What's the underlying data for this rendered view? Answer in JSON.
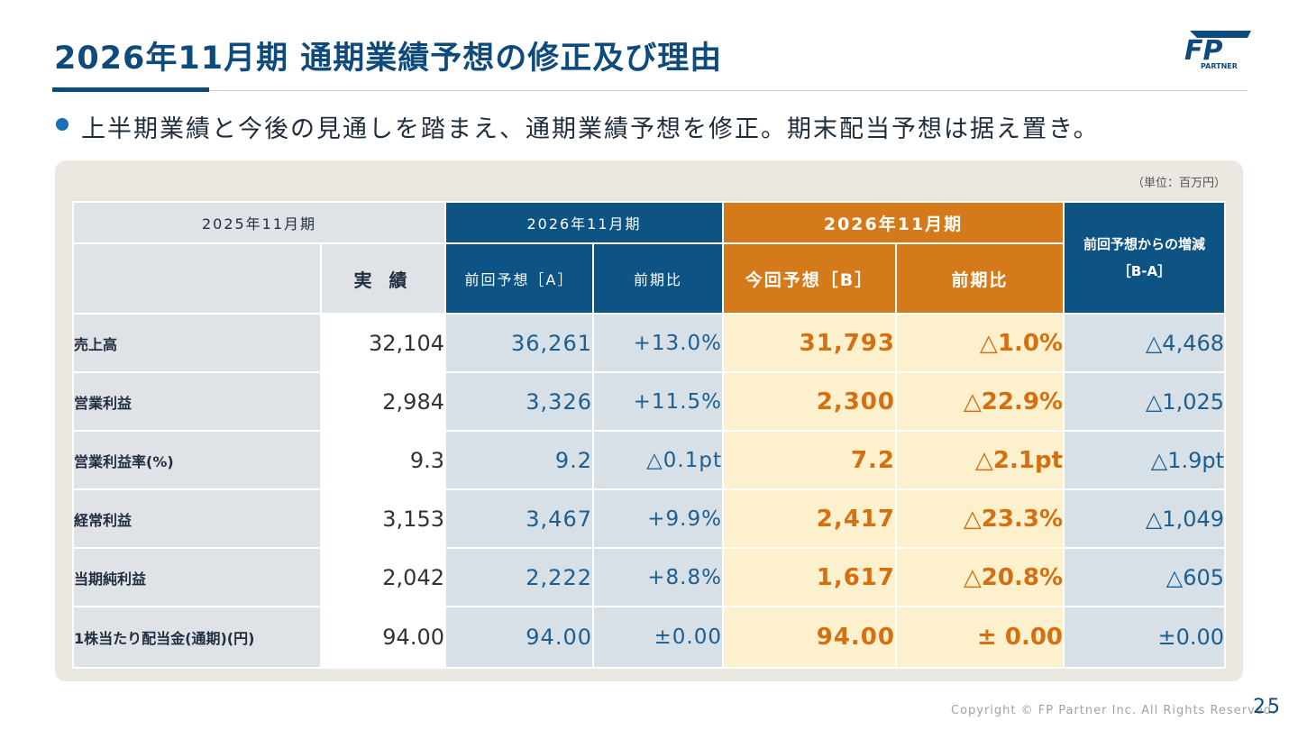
{
  "slide": {
    "title": "2026年11月期 通期業績予想の修正及び理由",
    "lead": "上半期業績と今後の見通しを踏まえ、通期業績予想を修正。期末配当予想は据え置き。",
    "logo_text": "FP",
    "logo_subtext": "PARTNER",
    "unit": "（単位：百万円）",
    "footer": "Copyright © FP Partner Inc. All Rights Reserved.",
    "page_number": "25"
  },
  "table": {
    "header": {
      "fy2025": "2025年11月期",
      "actual": "実 績",
      "fy2026_prev": "2026年11月期",
      "prev_forecast": "前回予想［A］",
      "prev_yoy": "前期比",
      "fy2026_cur": "2026年11月期",
      "cur_forecast": "今回予想［B］",
      "cur_yoy": "前期比",
      "diff_line1": "前回予想からの増減",
      "diff_line2": "［B-A］"
    },
    "rows": [
      {
        "label": "売上高",
        "actual": "32,104",
        "prev": "36,261",
        "prev_yoy": "+13.0%",
        "cur": "31,793",
        "cur_yoy": "△1.0%",
        "diff": "△4,468"
      },
      {
        "label": "営業利益",
        "actual": "2,984",
        "prev": "3,326",
        "prev_yoy": "+11.5%",
        "cur": "2,300",
        "cur_yoy": "△22.9%",
        "diff": "△1,025"
      },
      {
        "label": "営業利益率(%)",
        "actual": "9.3",
        "prev": "9.2",
        "prev_yoy": "△0.1pt",
        "cur": "7.2",
        "cur_yoy": "△2.1pt",
        "diff": "△1.9pt"
      },
      {
        "label": "経常利益",
        "actual": "3,153",
        "prev": "3,467",
        "prev_yoy": "+9.9%",
        "cur": "2,417",
        "cur_yoy": "△23.3%",
        "diff": "△1,049"
      },
      {
        "label": "当期純利益",
        "actual": "2,042",
        "prev": "2,222",
        "prev_yoy": "+8.8%",
        "cur": "1,617",
        "cur_yoy": "△20.8%",
        "diff": "△605"
      },
      {
        "label": "1株当たり配当金(通期)(円)",
        "actual": "94.00",
        "prev": "94.00",
        "prev_yoy": "±0.00",
        "cur": "94.00",
        "cur_yoy": "± 0.00",
        "diff": "±0.00"
      }
    ]
  },
  "colors": {
    "primary_blue": "#0f4a7c",
    "header_blue": "#0d5384",
    "header_orange": "#d57a1b",
    "forecast_text": "#d46f12",
    "forecast_bg": "#fdf0cc",
    "prev_bg": "#d6e0e6"
  }
}
